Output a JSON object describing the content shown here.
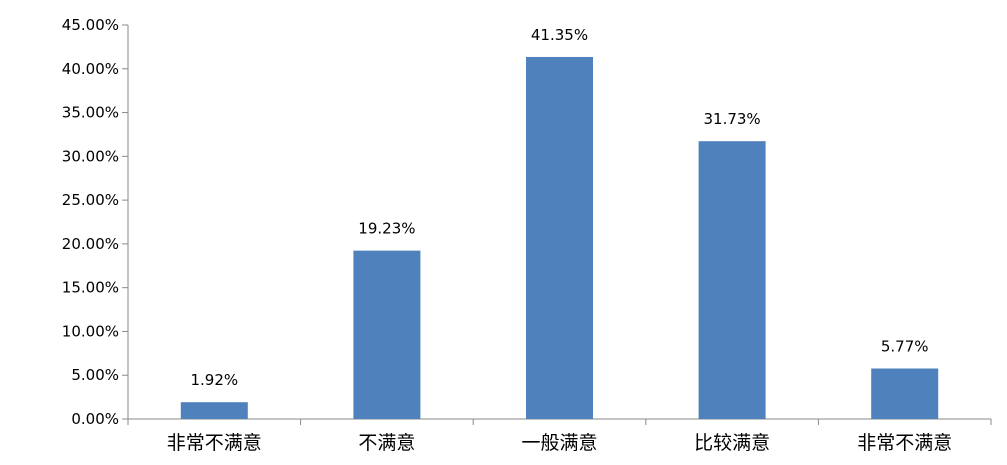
{
  "chart_data": {
    "type": "bar",
    "title": "",
    "xlabel": "",
    "ylabel": "",
    "categories": [
      "非常不满意",
      "不满意",
      "一般满意",
      "比较满意",
      "非常不满意"
    ],
    "values": [
      1.92,
      19.23,
      41.35,
      31.73,
      5.77
    ],
    "data_labels": [
      "1.92%",
      "19.23%",
      "41.35%",
      "31.73%",
      "5.77%"
    ],
    "ylim": [
      0,
      45
    ],
    "yticks": [
      0,
      5,
      10,
      15,
      20,
      25,
      30,
      35,
      40,
      45
    ],
    "ytick_labels": [
      "0.00%",
      "5.00%",
      "10.00%",
      "15.00%",
      "20.00%",
      "25.00%",
      "30.00%",
      "35.00%",
      "40.00%",
      "45.00%"
    ],
    "grid": false,
    "legend": "none",
    "bar_color": "#4F81BD"
  }
}
